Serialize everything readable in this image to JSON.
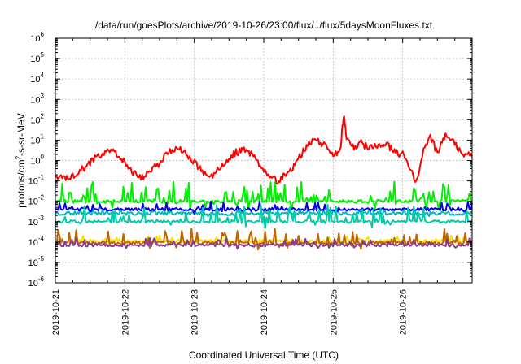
{
  "chart_data": {
    "type": "line",
    "title": "/data/run/goesPlots/archive/2019-10-26/23:00/flux/../flux/5daysMoonFluxes.txt",
    "xlabel": "Coordinated Universal Time (UTC)",
    "ylabel": "protons/cm²-s-sr-MeV",
    "ylabel_parts": {
      "pre": "protons/cm",
      "sup": "2",
      "post": "-s-sr-MeV"
    },
    "yscale": "log",
    "ylim_exp": [
      -6,
      6
    ],
    "y_tick_base": "10",
    "y_tick_exponents": [
      "-6",
      "-5",
      "-4",
      "-3",
      "-2",
      "-1",
      "0",
      "1",
      "2",
      "3",
      "4",
      "5",
      "6"
    ],
    "x_start": "2019-10-21",
    "x_end": "2019-10-27",
    "x_tick_labels": [
      "2019-10-21",
      "2019-10-22",
      "2019-10-23",
      "2019-10-24",
      "2019-10-25",
      "2019-10-26"
    ],
    "grid": true,
    "series": [
      {
        "color": "#ff0000",
        "x_days": [
          0.0,
          0.1,
          0.2,
          0.3,
          0.4,
          0.5,
          0.6,
          0.7,
          0.8,
          0.9,
          1.0,
          1.1,
          1.2,
          1.3,
          1.4,
          1.5,
          1.6,
          1.7,
          1.8,
          1.9,
          2.0,
          2.1,
          2.2,
          2.3,
          2.4,
          2.5,
          2.6,
          2.7,
          2.8,
          2.9,
          3.0,
          3.1,
          3.2,
          3.3,
          3.4,
          3.5,
          3.6,
          3.7,
          3.8,
          3.9,
          4.0,
          4.1,
          4.15,
          4.2,
          4.3,
          4.4,
          4.5,
          4.6,
          4.7,
          4.8,
          4.9,
          5.0,
          5.1,
          5.2,
          5.3,
          5.4,
          5.5,
          5.6,
          5.7,
          5.8,
          5.9,
          6.0
        ],
        "log10_values": [
          -0.8,
          -0.7,
          -0.9,
          -0.6,
          -0.4,
          -0.1,
          0.2,
          0.4,
          0.5,
          0.3,
          -0.1,
          -0.5,
          -0.9,
          -0.7,
          -0.4,
          -0.1,
          0.3,
          0.5,
          0.55,
          0.3,
          -0.1,
          -0.5,
          -0.9,
          -0.6,
          -0.3,
          0.1,
          0.4,
          0.5,
          0.4,
          0.0,
          -0.4,
          -0.8,
          -1.0,
          -0.7,
          -0.4,
          0.1,
          0.6,
          1.0,
          0.9,
          0.7,
          0.3,
          0.5,
          2.2,
          1.0,
          0.6,
          0.9,
          0.6,
          0.7,
          0.8,
          0.7,
          0.4,
          0.3,
          -0.4,
          -1.1,
          0.6,
          1.1,
          0.4,
          1.2,
          1.0,
          0.6,
          0.3,
          0.2
        ]
      },
      {
        "color": "#00ee00",
        "base_log10": -2.0,
        "amp": 1.0,
        "density": 7
      },
      {
        "color": "#00bbbb",
        "base_log10": -2.6,
        "amp": 0.25,
        "density": 4
      },
      {
        "color": "#0000ee",
        "base_log10": -2.4,
        "amp": 0.35,
        "density": 5
      },
      {
        "color": "#00ccaa",
        "base_log10": -3.0,
        "amp": 0.8,
        "density": 6
      },
      {
        "color": "#ffdd00",
        "base_log10": -3.95,
        "amp": 0.25,
        "density": 4
      },
      {
        "color": "#bb6600",
        "base_log10": -4.05,
        "amp": 0.7,
        "density": 6
      },
      {
        "color": "#8b3a8b",
        "base_log10": -4.15,
        "amp": 0.35,
        "density": 5
      }
    ]
  }
}
